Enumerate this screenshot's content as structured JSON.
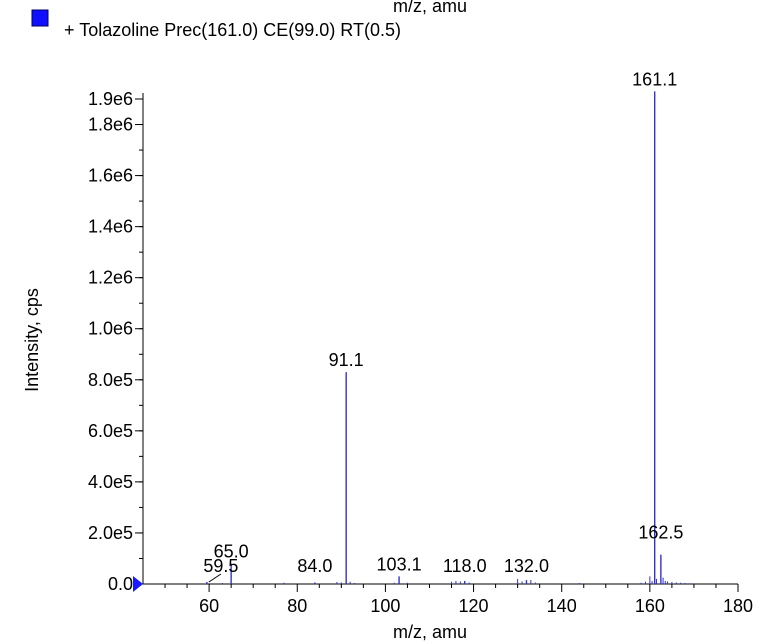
{
  "chart_data": {
    "type": "bar",
    "title": "",
    "top_clipped_text": "m/z, amu",
    "legend": {
      "label": "+ Tolazoline Prec(161.0) CE(99.0) RT(0.5)",
      "color": "#1010ff",
      "placement": "top-left"
    },
    "xlabel": "m/z, amu",
    "ylabel": "Intensity, cps",
    "xlim": [
      45,
      180
    ],
    "ylim": [
      0,
      1900000
    ],
    "grid": false,
    "series_color": "#3333cc",
    "x_ticks": [
      60,
      80,
      100,
      120,
      140,
      160,
      180
    ],
    "x_tick_labels": [
      "60",
      "80",
      "100",
      "120",
      "140",
      "160",
      "180"
    ],
    "y_ticks": [
      0,
      200000,
      400000,
      600000,
      800000,
      1000000,
      1200000,
      1400000,
      1600000,
      1800000,
      1900000
    ],
    "y_tick_labels": [
      "0.0",
      "2.0e5",
      "4.0e5",
      "6.0e5",
      "8.0e5",
      "1.0e6",
      "1.2e6",
      "1.4e6",
      "1.6e6",
      "1.8e6",
      "1.9e6"
    ],
    "peaks": [
      {
        "mz": 59.5,
        "intensity": 8000,
        "label": "59.5"
      },
      {
        "mz": 65.0,
        "intensity": 80000,
        "label": "65.0"
      },
      {
        "mz": 84.0,
        "intensity": 6000,
        "label": "84.0"
      },
      {
        "mz": 91.1,
        "intensity": 830000,
        "label": "91.1"
      },
      {
        "mz": 103.1,
        "intensity": 30000,
        "label": "103.1"
      },
      {
        "mz": 118.0,
        "intensity": 12000,
        "label": "118.0"
      },
      {
        "mz": 132.0,
        "intensity": 15000,
        "label": "132.0"
      },
      {
        "mz": 161.1,
        "intensity": 1930000,
        "label": "161.1"
      },
      {
        "mz": 162.5,
        "intensity": 115000,
        "label": "162.5"
      }
    ],
    "minor_peaks": [
      {
        "mz": 63.0,
        "intensity": 4000
      },
      {
        "mz": 77.0,
        "intensity": 5000
      },
      {
        "mz": 89.0,
        "intensity": 8000
      },
      {
        "mz": 90.0,
        "intensity": 6000
      },
      {
        "mz": 92.0,
        "intensity": 9000
      },
      {
        "mz": 93.0,
        "intensity": 4000
      },
      {
        "mz": 102.0,
        "intensity": 5000
      },
      {
        "mz": 105.0,
        "intensity": 5000
      },
      {
        "mz": 115.0,
        "intensity": 9000
      },
      {
        "mz": 116.0,
        "intensity": 12000
      },
      {
        "mz": 117.0,
        "intensity": 10000
      },
      {
        "mz": 119.0,
        "intensity": 6000
      },
      {
        "mz": 130.0,
        "intensity": 20000
      },
      {
        "mz": 131.0,
        "intensity": 10000
      },
      {
        "mz": 133.0,
        "intensity": 16000
      },
      {
        "mz": 134.0,
        "intensity": 6000
      },
      {
        "mz": 144.0,
        "intensity": 4000
      },
      {
        "mz": 158.0,
        "intensity": 5000
      },
      {
        "mz": 159.0,
        "intensity": 9000
      },
      {
        "mz": 160.0,
        "intensity": 30000
      },
      {
        "mz": 160.5,
        "intensity": 12000
      },
      {
        "mz": 161.5,
        "intensity": 20000
      },
      {
        "mz": 163.0,
        "intensity": 25000
      },
      {
        "mz": 163.5,
        "intensity": 12000
      },
      {
        "mz": 164.0,
        "intensity": 10000
      },
      {
        "mz": 165.0,
        "intensity": 8000
      },
      {
        "mz": 166.0,
        "intensity": 6000
      },
      {
        "mz": 167.0,
        "intensity": 5000
      },
      {
        "mz": 168.0,
        "intensity": 4000
      },
      {
        "mz": 169.0,
        "intensity": 3000
      }
    ]
  }
}
